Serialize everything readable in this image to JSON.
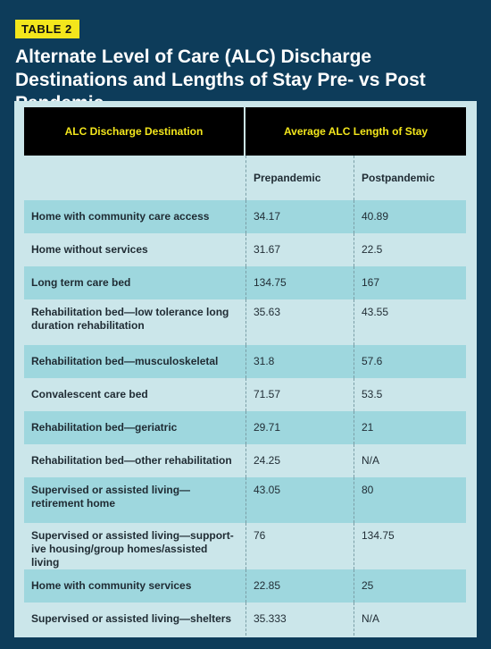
{
  "badge": "TABLE 2",
  "title": "Alternate Level of Care (ALC) Discharge Destinations and Lengths of Stay Pre- vs Post Pandemic",
  "table": {
    "header_destination": "ALC Discharge Destination",
    "header_stay": "Average ALC Length of Stay",
    "sub_pre": "Prepandemic",
    "sub_post": "Postpandemic",
    "rows": [
      {
        "destination": "Home with community care access",
        "pre": "34.17",
        "post": "40.89"
      },
      {
        "destination": "Home without services",
        "pre": "31.67",
        "post": "22.5"
      },
      {
        "destination": "Long term care bed",
        "pre": "134.75",
        "post": "167"
      },
      {
        "destination": "Rehabilitation bed—low tolerance long duration rehabilitation",
        "pre": "35.63",
        "post": "43.55"
      },
      {
        "destination": "Rehabilitation bed—musculoskeletal",
        "pre": "31.8",
        "post": "57.6"
      },
      {
        "destination": "Convalescent care bed",
        "pre": "71.57",
        "post": "53.5"
      },
      {
        "destination": "Rehabilitation bed—geriatric",
        "pre": "29.71",
        "post": "21"
      },
      {
        "destination": "Rehabilitation bed—other rehabilitation",
        "pre": "24.25",
        "post": "N/A"
      },
      {
        "destination": "Supervised or assisted living—retirement home",
        "pre": "43.05",
        "post": "80"
      },
      {
        "destination": "Supervised or assisted living—support-ive housing/group homes/assisted living",
        "pre": "76",
        "post": "134.75"
      },
      {
        "destination": "Home with community services",
        "pre": "22.85",
        "post": "25"
      },
      {
        "destination": "Supervised or assisted living—shelters",
        "pre": "35.333",
        "post": "N/A"
      }
    ]
  }
}
